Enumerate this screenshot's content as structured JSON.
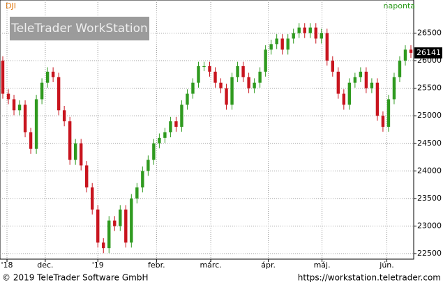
{
  "chart_data": {
    "type": "candlestick",
    "title": "DJI",
    "interval": "naponta",
    "watermark": "TeleTrader WorkStation",
    "copyright": "© 2019 TeleTrader Software GmbH",
    "url": "https://workstation.teletrader.com",
    "up_color": "#2f9a1f",
    "down_color": "#c8141e",
    "grid": true,
    "x": [
      0,
      1,
      2,
      3,
      4,
      5,
      6,
      7,
      8,
      9,
      10,
      11,
      12,
      13,
      14,
      15,
      16,
      17,
      18,
      19,
      20,
      21,
      22,
      23,
      24,
      25,
      26,
      27,
      28,
      29,
      30,
      31,
      32,
      33,
      34,
      35,
      36,
      37,
      38,
      39,
      40,
      41,
      42,
      43,
      44,
      45,
      46,
      47,
      48,
      49,
      50,
      51,
      52,
      53,
      54,
      55,
      56,
      57,
      58,
      59,
      60,
      61,
      62,
      63,
      64,
      65,
      66,
      67,
      68,
      69,
      70,
      71,
      72,
      73
    ],
    "open": [
      26000,
      25400,
      25300,
      25100,
      25200,
      24700,
      24400,
      25300,
      25600,
      25800,
      25700,
      25100,
      24900,
      24200,
      24500,
      24100,
      23700,
      23300,
      22700,
      22600,
      23100,
      23000,
      23300,
      22700,
      23500,
      23700,
      24000,
      24200,
      24500,
      24600,
      24700,
      24900,
      24800,
      25200,
      25400,
      25600,
      25900,
      25900,
      25800,
      25600,
      25500,
      25200,
      25700,
      25900,
      25700,
      25500,
      25600,
      25800,
      26200,
      26300,
      26400,
      26200,
      26400,
      26500,
      26600,
      26500,
      26600,
      26400,
      26500,
      26000,
      25800,
      25400,
      25200,
      25600,
      25700,
      25800,
      25500,
      25600,
      25000,
      24800,
      25300,
      25700,
      26000,
      26200
    ],
    "high": [
      26080,
      25480,
      25380,
      25280,
      25280,
      24780,
      25380,
      25680,
      25880,
      25880,
      25780,
      25180,
      24980,
      24580,
      24580,
      24180,
      23780,
      23380,
      22780,
      23180,
      23180,
      23380,
      23380,
      23580,
      23780,
      24080,
      24280,
      24580,
      24680,
      24780,
      24980,
      24980,
      25280,
      25480,
      25680,
      25980,
      25980,
      25980,
      25880,
      25680,
      25580,
      25780,
      25980,
      25980,
      25780,
      25680,
      25880,
      26280,
      26380,
      26480,
      26480,
      26480,
      26580,
      26680,
      26680,
      26680,
      26680,
      26580,
      26580,
      26080,
      25880,
      25480,
      25680,
      25780,
      25880,
      25880,
      25680,
      25680,
      25080,
      25380,
      25780,
      26080,
      26280,
      26280
    ],
    "low": [
      25310,
      25210,
      25010,
      25010,
      24610,
      24310,
      24310,
      25210,
      25510,
      25610,
      25010,
      24810,
      24110,
      24110,
      24010,
      23610,
      23210,
      22610,
      22510,
      22510,
      22910,
      22910,
      22610,
      22610,
      23410,
      23610,
      23910,
      24110,
      24410,
      24510,
      24610,
      24710,
      24710,
      25110,
      25310,
      25510,
      25810,
      25710,
      25510,
      25410,
      25110,
      25110,
      25610,
      25610,
      25410,
      25410,
      25510,
      25710,
      26110,
      26210,
      26110,
      26110,
      26310,
      26410,
      26410,
      26410,
      26310,
      26310,
      25910,
      25710,
      25310,
      25110,
      25110,
      25510,
      25610,
      25410,
      25410,
      24910,
      24710,
      24710,
      25210,
      25610,
      25910,
      26050
    ],
    "close": [
      25400,
      25300,
      25100,
      25200,
      24700,
      24400,
      25300,
      25600,
      25800,
      25700,
      25100,
      24900,
      24200,
      24500,
      24100,
      23700,
      23300,
      22700,
      22600,
      23100,
      23000,
      23300,
      22700,
      23500,
      23700,
      24000,
      24200,
      24500,
      24600,
      24700,
      24900,
      24800,
      25200,
      25400,
      25600,
      25900,
      25900,
      25800,
      25600,
      25500,
      25200,
      25700,
      25900,
      25700,
      25500,
      25600,
      25800,
      26200,
      26300,
      26400,
      26200,
      26400,
      26500,
      26600,
      26500,
      26600,
      26400,
      26500,
      26000,
      25800,
      25400,
      25200,
      25600,
      25700,
      25800,
      25500,
      25600,
      25000,
      24800,
      25300,
      25700,
      26000,
      26200,
      26141
    ],
    "xlim": [
      -0.5,
      73.5
    ],
    "ylim": [
      22400,
      27100
    ],
    "yticks": [
      22500,
      23000,
      23500,
      24000,
      24500,
      25000,
      25500,
      26000,
      26500
    ],
    "xticks": [
      {
        "value": 0.75,
        "label": "'18"
      },
      {
        "value": 7.6,
        "label": "dec."
      },
      {
        "value": 17,
        "label": "'19"
      },
      {
        "value": 27.5,
        "label": "febr."
      },
      {
        "value": 37.2,
        "label": "márc."
      },
      {
        "value": 47.5,
        "label": "ápr."
      },
      {
        "value": 57.1,
        "label": "máj."
      },
      {
        "value": 68.7,
        "label": "jún."
      }
    ]
  }
}
